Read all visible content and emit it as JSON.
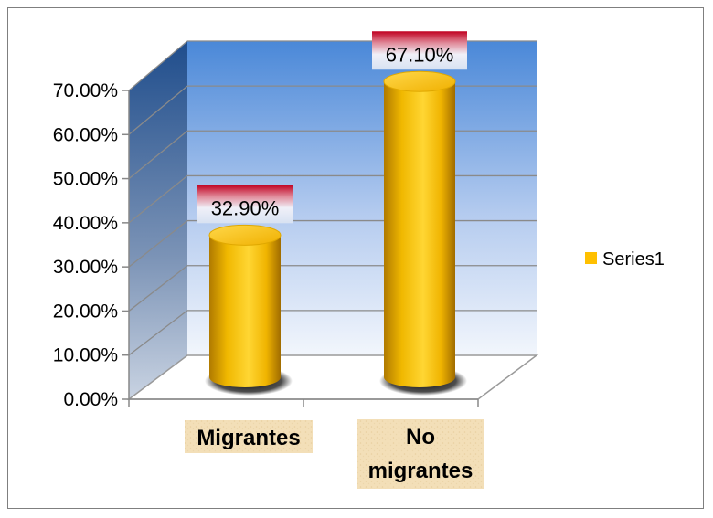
{
  "chart_data": {
    "type": "bar",
    "style": "3d-cylinder",
    "categories": [
      "Migrantes",
      "No migrantes"
    ],
    "series": [
      {
        "name": "Series1",
        "values": [
          32.9,
          67.1
        ],
        "color": "#ffc000"
      }
    ],
    "data_labels": [
      "32.90%",
      "67.10%"
    ],
    "y_tick_labels": [
      "0.00%",
      "10.00%",
      "20.00%",
      "30.00%",
      "40.00%",
      "50.00%",
      "60.00%",
      "70.00%"
    ],
    "ylim": [
      0,
      70
    ],
    "grid": true,
    "legend_position": "right",
    "title": "",
    "xlabel": "",
    "ylabel": ""
  }
}
